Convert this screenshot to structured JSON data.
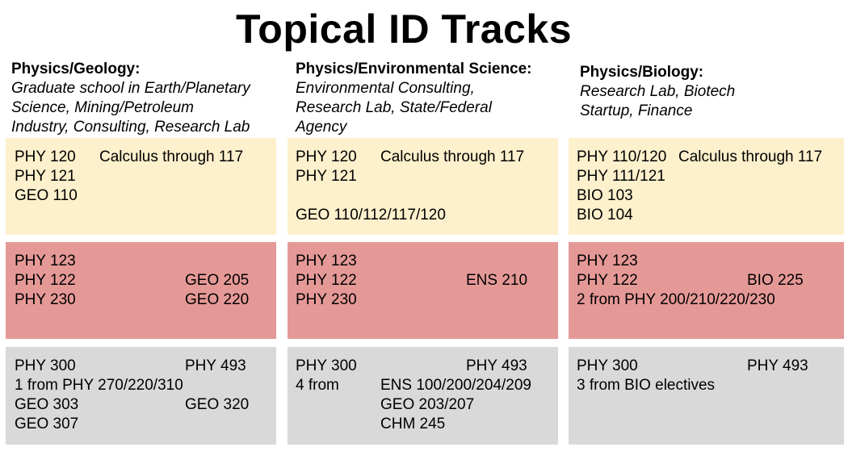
{
  "title": "Topical ID Tracks",
  "tracks": [
    {
      "name": "Physics/Geology:",
      "description": "Graduate school in Earth/Planetary Science, Mining/Petroleum Industry, Consulting, Research Lab",
      "description_lines": [
        "Graduate school in Earth/Planetary",
        "Science, Mining/Petroleum",
        "Industry, Consulting, Research Lab"
      ],
      "tiers": [
        [
          "PHY 120",
          "Calculus through 117",
          "PHY 121",
          "GEO 110"
        ],
        [
          "PHY 123",
          "PHY 122",
          "GEO 205",
          "PHY 230",
          "GEO 220"
        ],
        [
          "PHY 300",
          "PHY 493",
          "1 from PHY 270/220/310",
          "GEO 303",
          "GEO 320",
          "GEO 307"
        ]
      ]
    },
    {
      "name": "Physics/Environmental Science:",
      "description": "Environmental Consulting, Research Lab, State/Federal Agency",
      "description_lines": [
        "Environmental Consulting,",
        "Research Lab, State/Federal",
        "Agency"
      ],
      "tiers": [
        [
          "PHY 120",
          "Calculus through 117",
          "PHY 121",
          "GEO 110/112/117/120"
        ],
        [
          "PHY 123",
          "PHY 122",
          "ENS 210",
          "PHY 230"
        ],
        [
          "PHY 300",
          "PHY 493",
          "4 from",
          "ENS 100/200/204/209",
          "GEO 203/207",
          "CHM 245"
        ]
      ]
    },
    {
      "name": "Physics/Biology:",
      "description": "Research Lab, Biotech Startup, Finance",
      "description_lines": [
        "Research Lab, Biotech",
        "Startup, Finance"
      ],
      "tiers": [
        [
          "PHY 110/120",
          "Calculus through 117",
          "PHY 111/121",
          "BIO 103",
          "BIO 104"
        ],
        [
          "PHY 123",
          "PHY 122",
          "BIO 225",
          "2 from PHY 200/210/220/230"
        ],
        [
          "PHY 300",
          "PHY 493",
          "3 from BIO electives"
        ]
      ]
    }
  ],
  "colors": {
    "tier_1": "#fdf0cc",
    "tier_2": "#e59997",
    "tier_3": "#d9d9d9"
  }
}
